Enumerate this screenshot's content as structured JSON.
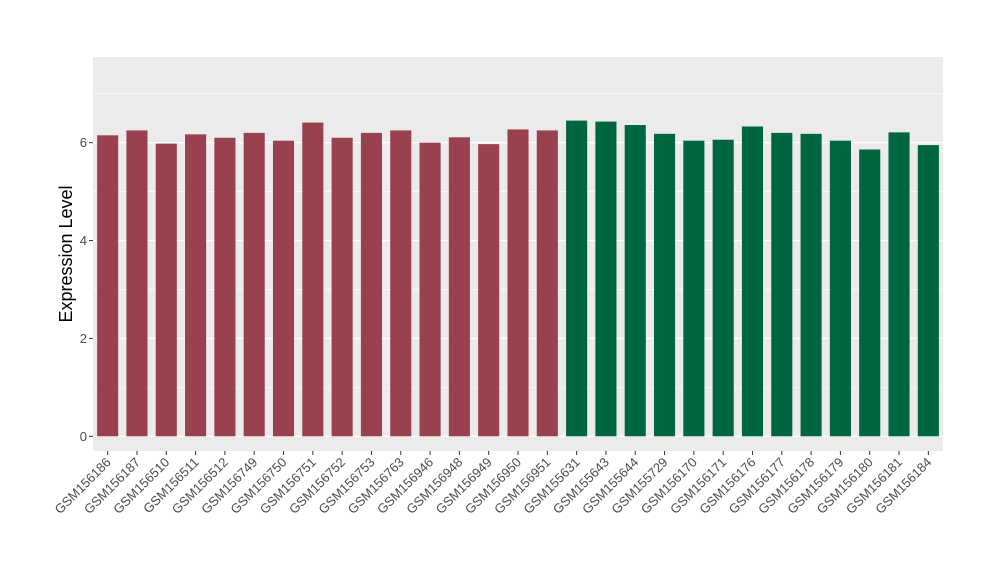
{
  "chart_data": {
    "type": "bar",
    "title": "",
    "xlabel": "",
    "ylabel": "Expression Level",
    "ylim": [
      -0.3,
      7.75
    ],
    "yticks": [
      0,
      2,
      4,
      6
    ],
    "grid": true,
    "legend": "none",
    "categories": [
      "GSM156186",
      "GSM156187",
      "GSM156510",
      "GSM156511",
      "GSM156512",
      "GSM156749",
      "GSM156750",
      "GSM156751",
      "GSM156752",
      "GSM156753",
      "GSM156763",
      "GSM156946",
      "GSM156948",
      "GSM156949",
      "GSM156950",
      "GSM156951",
      "GSM155631",
      "GSM155643",
      "GSM155644",
      "GSM155729",
      "GSM156170",
      "GSM156171",
      "GSM156176",
      "GSM156177",
      "GSM156178",
      "GSM156179",
      "GSM156180",
      "GSM156181",
      "GSM156184"
    ],
    "values": [
      6.15,
      6.25,
      5.98,
      6.17,
      6.1,
      6.2,
      6.04,
      6.41,
      6.1,
      6.2,
      6.25,
      6.0,
      6.11,
      5.97,
      6.27,
      6.25,
      6.45,
      6.43,
      6.36,
      6.18,
      6.04,
      6.06,
      6.33,
      6.2,
      6.18,
      6.04,
      5.86,
      6.21,
      5.95
    ],
    "groups": [
      "a",
      "a",
      "a",
      "a",
      "a",
      "a",
      "a",
      "a",
      "a",
      "a",
      "a",
      "a",
      "a",
      "a",
      "a",
      "a",
      "b",
      "b",
      "b",
      "b",
      "b",
      "b",
      "b",
      "b",
      "b",
      "b",
      "b",
      "b",
      "b"
    ],
    "colors": {
      "a": "#9a4150",
      "b": "#006640"
    },
    "panel_background": "#ebebeb",
    "grid_color": "#ffffff"
  }
}
